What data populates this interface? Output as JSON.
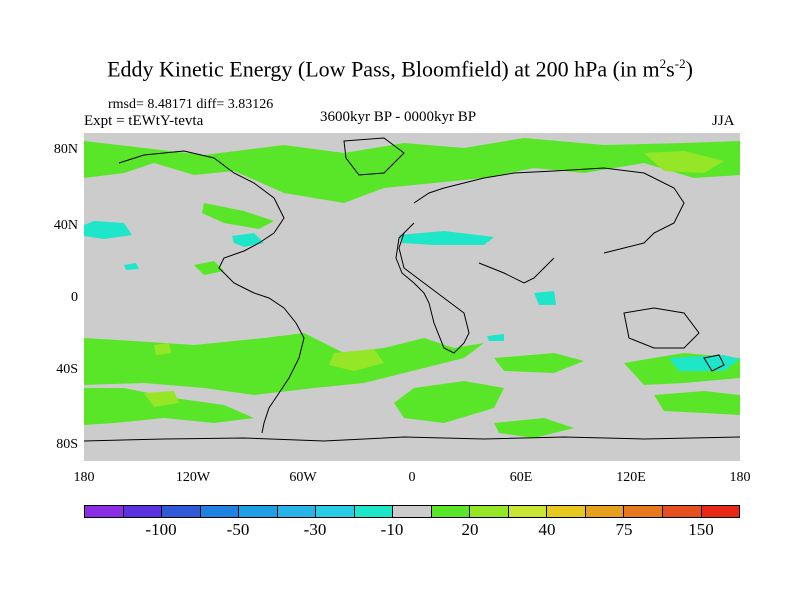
{
  "title": {
    "main": "Eddy Kinetic Energy (Low Pass, Bloomfield) at 200 hPa (in m",
    "sup1": "2",
    "mid": "s",
    "sup2": "-2",
    "end": ")"
  },
  "stats": "rmsd= 8.48171 diff= 3.83126",
  "expt": "Expt = tEWtY-tevta",
  "period": "3600kyr BP - 0000kyr BP",
  "season": "JJA",
  "lat_labels": [
    "80N",
    "40N",
    "0",
    "40S",
    "80S"
  ],
  "lon_labels": [
    "180",
    "120W",
    "60W",
    "0",
    "60E",
    "120E",
    "180"
  ],
  "colorbar": {
    "colors": [
      "#8c2ee6",
      "#5a32e0",
      "#2e5ad8",
      "#1e82e0",
      "#1ea0e6",
      "#28b4e6",
      "#28cce6",
      "#1ee6c8",
      "#cccccc",
      "#5ae628",
      "#96e628",
      "#c8e632",
      "#e6c81e",
      "#e6a01e",
      "#e6781e",
      "#e6501e",
      "#e62814"
    ],
    "labels": [
      "-100",
      "-50",
      "-30",
      "-10",
      "20",
      "40",
      "75",
      "150"
    ]
  },
  "colors": {
    "land_background": "#cccccc",
    "positive_light": "#5ae628",
    "positive_medium": "#96e628",
    "negative_light": "#1ee6c8"
  }
}
